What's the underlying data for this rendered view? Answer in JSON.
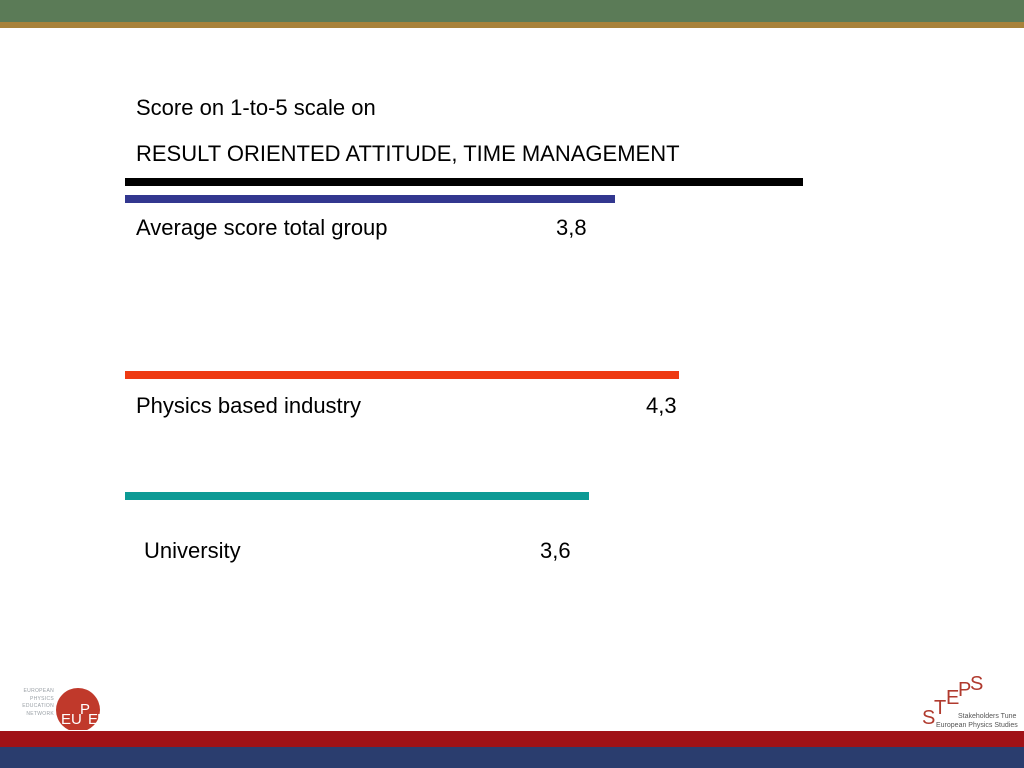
{
  "header": {
    "title_line1": "Score on 1-to-5 scale on",
    "title_line2": "RESULT ORIENTED ATTITUDE, TIME MANAGEMENT",
    "rule_color": "#000000"
  },
  "chart_data": {
    "type": "bar",
    "orientation": "horizontal",
    "title": "Score on 1-to-5 scale on RESULT ORIENTED ATTITUDE, TIME MANAGEMENT",
    "xlim": [
      0,
      5
    ],
    "grid": false,
    "categories": [
      "Average score total group",
      "Physics based industry",
      "University"
    ],
    "values": [
      3.8,
      4.3,
      3.6
    ],
    "value_labels": [
      "3,8",
      "4,3",
      "3,6"
    ],
    "colors": [
      "#32378f",
      "#ee3a12",
      "#0d9a95"
    ]
  },
  "footer": {
    "left_logo": {
      "name": "EUPEN",
      "caption_lines": [
        "EUROPEAN",
        "PHYSICS",
        "EDUCATION",
        "NETWORK"
      ],
      "icon": "eupen-logo",
      "color": "#c0392b"
    },
    "right_logo": {
      "name": "STEPS",
      "caption_lines": [
        "Stakeholders Tune",
        "European Physics Studies"
      ],
      "icon": "steps-logo",
      "color": "#b03a2e"
    },
    "band_colors": {
      "red": "#a01217",
      "blue": "#2a3d6e"
    }
  },
  "theme": {
    "top_band": "#5b7b57",
    "top_stripe": "#a8823a"
  }
}
